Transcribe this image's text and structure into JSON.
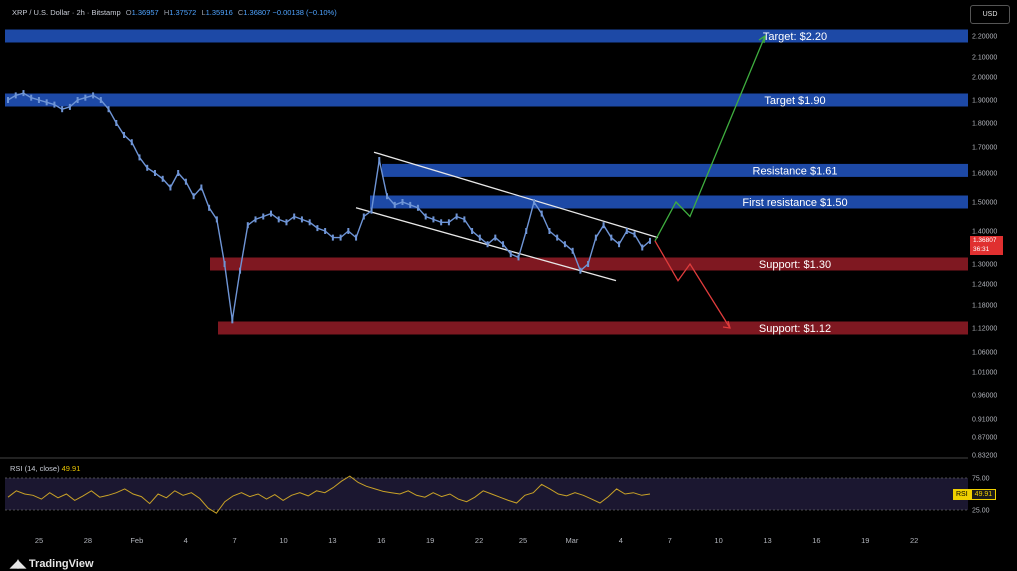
{
  "header": {
    "symbol": "XRP / U.S. Dollar · 2h · Bitstamp",
    "open_label": "O",
    "open": "1.36957",
    "high_label": "H",
    "high": "1.37572",
    "low_label": "L",
    "low": "1.35916",
    "close_label": "C",
    "close": "1.36807",
    "change": "−0.00138 (−0.10%)"
  },
  "currency_button": "USD",
  "last_price": {
    "value": "1.36807",
    "countdown": "36:31"
  },
  "levels": [
    {
      "label": "Target: $2.20",
      "price": 2.2,
      "kind": "resistance"
    },
    {
      "label": "Target $1.90",
      "price": 1.9,
      "kind": "resistance"
    },
    {
      "label": "Resistance $1.61",
      "price": 1.61,
      "kind": "resistance"
    },
    {
      "label": "First resistance $1.50",
      "price": 1.5,
      "kind": "resistance"
    },
    {
      "label": "Support: $1.30",
      "price": 1.3,
      "kind": "support"
    },
    {
      "label": "Support: $1.12",
      "price": 1.12,
      "kind": "support"
    }
  ],
  "colors": {
    "resistance": "#1f4fb4",
    "support": "#8a1a24",
    "candle": "#6f95d6",
    "bull_arrow": "#3fae3f",
    "bear_arrow": "#e03c3c",
    "rsi": "#c9a227",
    "price_tag": "#e03030"
  },
  "rsi": {
    "label": "RSI (14, close)",
    "value": "49.91",
    "tag": "RSI",
    "tag_value": "49.91",
    "ticks": [
      "75.00",
      "25.00"
    ]
  },
  "branding": {
    "name": "TradingView"
  },
  "chart_data": {
    "type": "line",
    "title": "",
    "price_axis_ticks": [
      "2.20000",
      "2.10000",
      "2.00000",
      "1.90000",
      "1.80000",
      "1.70000",
      "1.60000",
      "1.50000",
      "1.40000",
      "1.30000",
      "1.24000",
      "1.18000",
      "1.12000",
      "1.06000",
      "1.01000",
      "0.96000",
      "0.91000",
      "0.87000",
      "0.83200"
    ],
    "time_axis_ticks": [
      "25",
      "28",
      "Feb",
      "4",
      "7",
      "10",
      "13",
      "16",
      "19",
      "22",
      "25",
      "Mar",
      "4",
      "7",
      "10",
      "13",
      "16",
      "19",
      "22"
    ],
    "series": [
      {
        "values": [
          1.9,
          1.92,
          1.93,
          1.91,
          1.9,
          1.89,
          1.88,
          1.86,
          1.87,
          1.9,
          1.91,
          1.92,
          1.9,
          1.86,
          1.8,
          1.75,
          1.72,
          1.66,
          1.62,
          1.6,
          1.58,
          1.55,
          1.6,
          1.57,
          1.52,
          1.55,
          1.48,
          1.44,
          1.3,
          1.14,
          1.28,
          1.42,
          1.44,
          1.45,
          1.46,
          1.44,
          1.43,
          1.45,
          1.44,
          1.43,
          1.41,
          1.4,
          1.38,
          1.38,
          1.4,
          1.38,
          1.45,
          1.47,
          1.65,
          1.52,
          1.49,
          1.5,
          1.49,
          1.48,
          1.45,
          1.44,
          1.43,
          1.43,
          1.45,
          1.44,
          1.4,
          1.38,
          1.36,
          1.38,
          1.36,
          1.33,
          1.32,
          1.4,
          1.5,
          1.46,
          1.4,
          1.38,
          1.36,
          1.34,
          1.28,
          1.3,
          1.38,
          1.42,
          1.38,
          1.36,
          1.4,
          1.39,
          1.35,
          1.37
        ]
      }
    ],
    "channel": {
      "upper": [
        1.68,
        1.38
      ],
      "lower": [
        1.48,
        1.25
      ]
    },
    "scenarios": [
      {
        "direction": "up",
        "path": [
          1.37,
          1.5,
          1.45,
          2.2
        ]
      },
      {
        "direction": "down",
        "path": [
          1.37,
          1.25,
          1.3,
          1.12
        ]
      }
    ],
    "rsi_values": [
      45,
      55,
      50,
      48,
      42,
      52,
      44,
      50,
      40,
      47,
      55,
      45,
      48,
      52,
      58,
      50,
      46,
      35,
      50,
      44,
      55,
      48,
      52,
      43,
      28,
      20,
      38,
      47,
      52,
      46,
      50,
      42,
      49,
      40,
      48,
      52,
      47,
      55,
      52,
      60,
      70,
      78,
      68,
      62,
      58,
      54,
      52,
      50,
      55,
      48,
      45,
      52,
      46,
      50,
      42,
      38,
      45,
      55,
      50,
      45,
      40,
      36,
      48,
      52,
      65,
      58,
      50,
      47,
      52,
      48,
      42,
      36,
      46,
      58,
      50,
      52,
      48,
      50
    ]
  }
}
